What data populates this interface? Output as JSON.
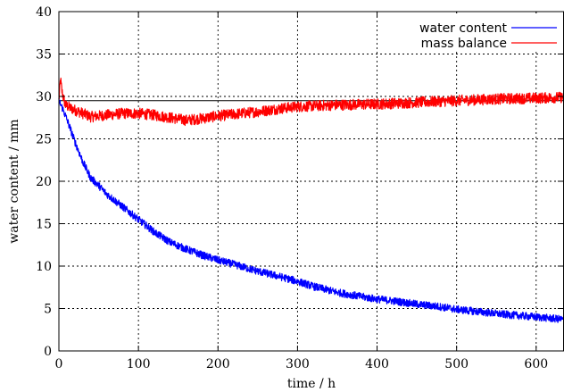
{
  "chart_data": {
    "type": "line",
    "xlabel": "time / h",
    "ylabel": "water content / mm",
    "xlim": [
      0,
      635
    ],
    "ylim": [
      0,
      40
    ],
    "xticks": [
      "0",
      "100",
      "200",
      "300",
      "400",
      "500",
      "600"
    ],
    "yticks": [
      "0",
      "5",
      "10",
      "15",
      "20",
      "25",
      "30",
      "35",
      "40"
    ],
    "grid": true,
    "legend_position": "top-right",
    "series": [
      {
        "name": "water content",
        "color": "#0000ff",
        "x": [
          0,
          5,
          10,
          20,
          30,
          40,
          50,
          60,
          80,
          100,
          120,
          140,
          160,
          180,
          200,
          220,
          250,
          280,
          300,
          320,
          350,
          380,
          400,
          420,
          450,
          480,
          500,
          530,
          560,
          600,
          635
        ],
        "y": [
          29.5,
          28.5,
          27.3,
          24.7,
          22.3,
          20.4,
          19.5,
          18.5,
          17.0,
          15.5,
          14.0,
          12.8,
          12.0,
          11.3,
          10.7,
          10.2,
          9.4,
          8.7,
          8.2,
          7.6,
          6.9,
          6.4,
          6.1,
          5.9,
          5.5,
          5.2,
          4.9,
          4.6,
          4.3,
          4.0,
          3.7
        ]
      },
      {
        "name": "mass balance",
        "color": "#ff0000",
        "x": [
          0,
          2,
          4,
          8,
          15,
          25,
          40,
          60,
          80,
          100,
          120,
          140,
          160,
          180,
          200,
          220,
          250,
          280,
          300,
          350,
          400,
          450,
          500,
          550,
          600,
          635
        ],
        "y": [
          29.5,
          32.0,
          30.5,
          29.0,
          28.6,
          28.2,
          27.6,
          27.8,
          28.0,
          28.0,
          27.8,
          27.5,
          27.2,
          27.4,
          27.7,
          27.9,
          28.2,
          28.6,
          28.8,
          29.0,
          29.1,
          29.3,
          29.5,
          29.7,
          29.8,
          29.9
        ]
      },
      {
        "name": "",
        "color": "#000000",
        "x": [
          0,
          635
        ],
        "y": [
          29.5,
          29.5
        ]
      }
    ]
  }
}
